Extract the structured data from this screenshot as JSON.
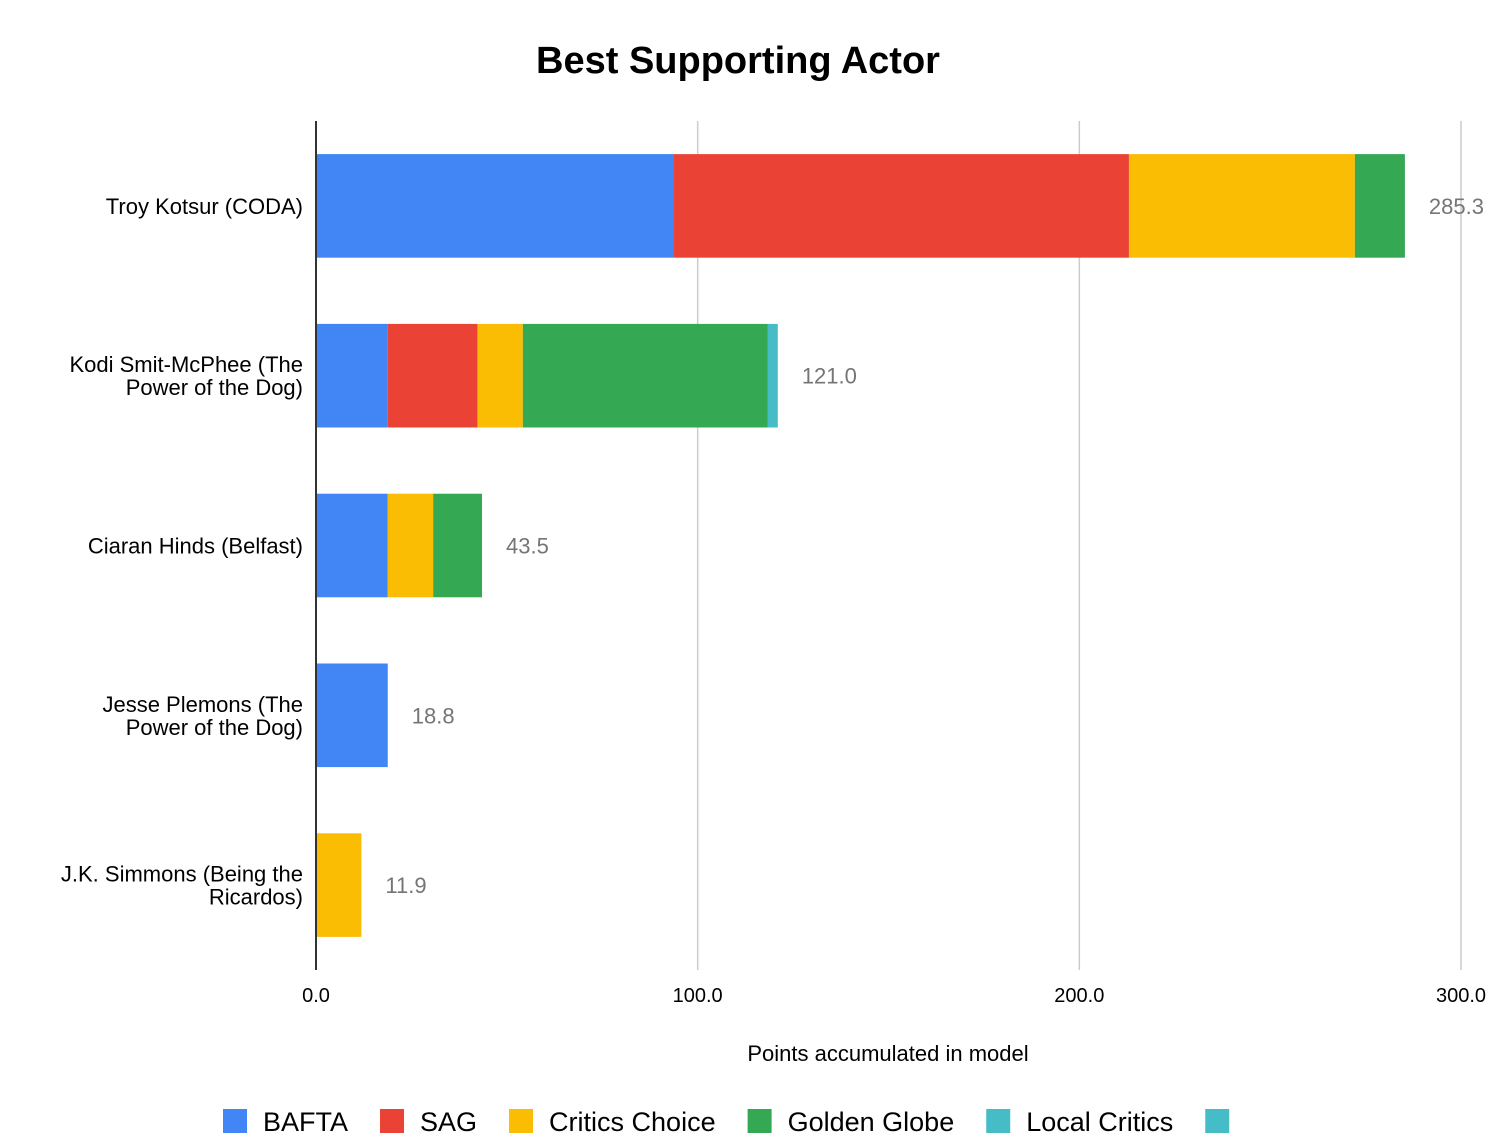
{
  "chart_data": {
    "type": "bar",
    "orientation": "horizontal",
    "stacked": true,
    "title": "Best Supporting Actor",
    "xlabel": "Points accumulated in model",
    "ylabel": "",
    "xlim": [
      0,
      300
    ],
    "xticks": [
      0,
      100,
      200,
      300
    ],
    "xtick_labels": [
      "0.0",
      "100.0",
      "200.0",
      "300.0"
    ],
    "grid": true,
    "legend_position": "bottom",
    "categories": [
      [
        "Troy Kotsur (CODA)"
      ],
      [
        "Kodi Smit-McPhee  (The",
        "Power of the Dog)"
      ],
      [
        "Ciaran Hinds (Belfast)"
      ],
      [
        "Jesse Plemons (The",
        "Power of the Dog)"
      ],
      [
        "J.K. Simmons (Being the",
        "Ricardos)"
      ]
    ],
    "series": [
      {
        "name": "BAFTA",
        "color": "#4285F4",
        "values": [
          93.8,
          18.8,
          18.8,
          18.8,
          0
        ]
      },
      {
        "name": "SAG",
        "color": "#EA4335",
        "values": [
          119.2,
          23.5,
          0,
          0,
          0
        ]
      },
      {
        "name": "Critics Choice",
        "color": "#FBBC04",
        "values": [
          59.2,
          11.9,
          11.9,
          0,
          11.9
        ]
      },
      {
        "name": "Golden Globe",
        "color": "#34A853",
        "values": [
          13.1,
          64.2,
          12.8,
          0,
          0
        ]
      },
      {
        "name": "Local Critics",
        "color": "#46BDC6",
        "values": [
          0,
          2.6,
          0,
          0,
          0
        ]
      },
      {
        "name": "",
        "color": "#46BDC6",
        "values": [
          0,
          0,
          0,
          0,
          0
        ]
      }
    ],
    "totals": [
      "285.3",
      "121.0",
      "43.5",
      "18.8",
      "11.9"
    ]
  }
}
